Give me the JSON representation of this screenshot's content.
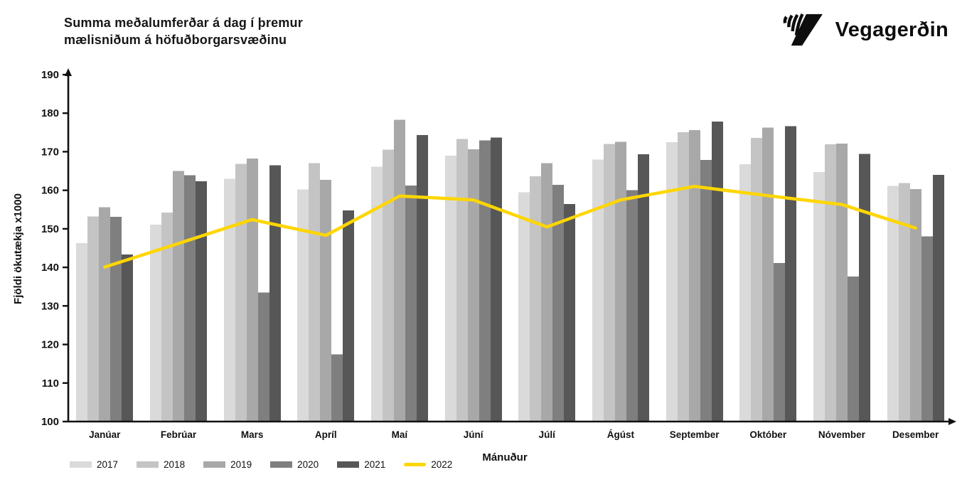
{
  "header": {
    "title_line1": "Summa meðalumferðar á dag í þremur",
    "title_line2": "mælisniðum á höfuðborgarsvæðinu",
    "logo_text": "Vegagerðin"
  },
  "chart_data": {
    "type": "bar+line",
    "title": "Summa meðalumferðar á dag í þremur mælisniðum á höfuðborgarsvæðinu",
    "xlabel": "Mánuður",
    "ylabel": "Fjöldi ökutækja x1000",
    "ylim": [
      100,
      190
    ],
    "yticks": [
      100,
      110,
      120,
      130,
      140,
      150,
      160,
      170,
      180,
      190
    ],
    "grid": false,
    "legend_position": "bottom-left",
    "categories": [
      "Janúar",
      "Febrúar",
      "Mars",
      "Apríl",
      "Maí",
      "Júní",
      "Júlí",
      "Ágúst",
      "September",
      "Október",
      "Nóvember",
      "Desember"
    ],
    "series": [
      {
        "name": "2017",
        "type": "bar",
        "color": "#dadada",
        "values": [
          146.3,
          151.1,
          163.0,
          160.2,
          166.1,
          169.0,
          159.5,
          168.0,
          172.5,
          166.8,
          164.7,
          161.1
        ]
      },
      {
        "name": "2018",
        "type": "bar",
        "color": "#c4c4c4",
        "values": [
          153.2,
          154.2,
          166.9,
          167.0,
          170.5,
          173.3,
          163.6,
          172.0,
          175.1,
          173.6,
          171.9,
          161.9
        ]
      },
      {
        "name": "2019",
        "type": "bar",
        "color": "#a8a8a8",
        "values": [
          155.6,
          165.0,
          168.2,
          162.7,
          178.3,
          170.6,
          167.0,
          172.6,
          175.6,
          176.3,
          172.1,
          160.3
        ]
      },
      {
        "name": "2020",
        "type": "bar",
        "color": "#7f7f7f",
        "values": [
          153.1,
          163.9,
          133.5,
          117.4,
          161.2,
          172.9,
          161.4,
          160.0,
          167.9,
          141.1,
          137.6,
          148.0
        ]
      },
      {
        "name": "2021",
        "type": "bar",
        "color": "#575757",
        "values": [
          143.3,
          162.3,
          166.5,
          154.8,
          174.3,
          173.7,
          156.4,
          169.3,
          177.8,
          176.6,
          169.4,
          164.0
        ]
      },
      {
        "name": "2022",
        "type": "line",
        "color": "#ffd600",
        "values": [
          140.1,
          146.2,
          152.4,
          148.3,
          158.5,
          157.5,
          150.5,
          157.5,
          161.0,
          158.6,
          156.3,
          150.2
        ]
      }
    ]
  },
  "colors": {
    "axis": "#111111",
    "background": "#ffffff",
    "accent_line": "#ffd600"
  }
}
